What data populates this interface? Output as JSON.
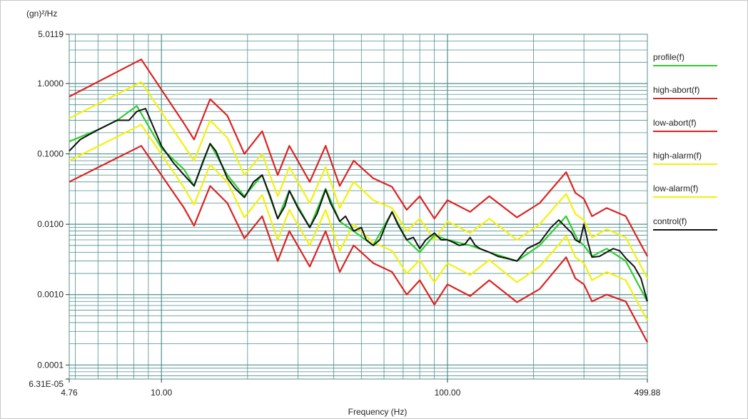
{
  "chart_data": {
    "type": "line",
    "title": "",
    "ylabel": "(gn)²/Hz",
    "xlabel": "Frequency (Hz)",
    "x_scale": "log",
    "y_scale": "log",
    "xlim": [
      4.76,
      499.88
    ],
    "ylim": [
      6.31e-05,
      5.0119
    ],
    "x_tick_labels": [
      {
        "value": 4.76,
        "label": "4.76"
      },
      {
        "value": 10,
        "label": "10.00"
      },
      {
        "value": 100,
        "label": "100.00"
      },
      {
        "value": 499.88,
        "label": "499.88"
      }
    ],
    "y_tick_labels": [
      {
        "value": 5.0119,
        "label": "5.0119"
      },
      {
        "value": 1.0,
        "label": "1.0000"
      },
      {
        "value": 0.1,
        "label": "0.1000"
      },
      {
        "value": 0.01,
        "label": "0.0100"
      },
      {
        "value": 0.001,
        "label": "0.0010"
      },
      {
        "value": 0.0001,
        "label": "0.0001"
      },
      {
        "value": 6.31e-05,
        "label": "6.31E-05"
      }
    ],
    "grid": true,
    "legend_position": "right",
    "series": [
      {
        "name": "profile(f)",
        "color": "#2ecc2e",
        "x": [
          4.76,
          6,
          7,
          8.2,
          10,
          12,
          13,
          14.8,
          17,
          19.5,
          22.5,
          25.5,
          28,
          33,
          37.5,
          42,
          47,
          55,
          64,
          72,
          80,
          90,
          100,
          120,
          140,
          175,
          210,
          260,
          285,
          300,
          320,
          360,
          420,
          499.88
        ],
        "y": [
          0.15,
          0.22,
          0.3,
          0.48,
          0.12,
          0.06,
          0.035,
          0.14,
          0.05,
          0.025,
          0.05,
          0.012,
          0.03,
          0.009,
          0.032,
          0.011,
          0.008,
          0.005,
          0.015,
          0.006,
          0.004,
          0.007,
          0.006,
          0.005,
          0.004,
          0.003,
          0.005,
          0.013,
          0.006,
          0.005,
          0.0035,
          0.0045,
          0.003,
          0.0008
        ]
      },
      {
        "name": "high-abort(f)",
        "color": "#dd2222",
        "x": [
          4.76,
          8.5,
          12,
          13,
          14.8,
          17,
          19.5,
          22.5,
          25.5,
          28,
          33,
          37.5,
          42,
          47,
          55,
          64,
          72,
          80,
          90,
          100,
          120,
          140,
          175,
          210,
          260,
          280,
          300,
          320,
          360,
          420,
          499.88
        ],
        "y": [
          0.65,
          2.2,
          0.27,
          0.16,
          0.6,
          0.35,
          0.1,
          0.21,
          0.05,
          0.13,
          0.04,
          0.13,
          0.035,
          0.08,
          0.045,
          0.034,
          0.016,
          0.025,
          0.012,
          0.022,
          0.015,
          0.025,
          0.0125,
          0.02,
          0.055,
          0.028,
          0.023,
          0.013,
          0.017,
          0.013,
          0.0035
        ]
      },
      {
        "name": "low-abort(f)",
        "color": "#dd2222",
        "x": [
          4.76,
          8.5,
          12,
          13,
          14.8,
          17,
          19.5,
          22.5,
          25.5,
          28,
          33,
          37.5,
          42,
          47,
          55,
          64,
          72,
          80,
          90,
          100,
          120,
          140,
          175,
          210,
          260,
          280,
          300,
          320,
          360,
          420,
          499.88
        ],
        "y": [
          0.04,
          0.13,
          0.017,
          0.0095,
          0.035,
          0.02,
          0.0063,
          0.013,
          0.003,
          0.008,
          0.0025,
          0.008,
          0.0021,
          0.005,
          0.0028,
          0.0021,
          0.001,
          0.0016,
          0.00072,
          0.0014,
          0.00095,
          0.0016,
          0.00078,
          0.0012,
          0.0034,
          0.0017,
          0.0014,
          0.0008,
          0.001,
          0.0008,
          0.00021
        ]
      },
      {
        "name": "high-alarm(f)",
        "color": "#f2f20a",
        "x": [
          4.76,
          8.5,
          12,
          13,
          14.8,
          17,
          19.5,
          22.5,
          25.5,
          28,
          33,
          37.5,
          42,
          47,
          55,
          64,
          72,
          80,
          90,
          100,
          120,
          140,
          175,
          210,
          260,
          280,
          300,
          320,
          360,
          420,
          499.88
        ],
        "y": [
          0.32,
          1.05,
          0.13,
          0.08,
          0.3,
          0.17,
          0.05,
          0.1,
          0.025,
          0.065,
          0.02,
          0.065,
          0.017,
          0.04,
          0.022,
          0.017,
          0.008,
          0.012,
          0.006,
          0.011,
          0.0075,
          0.012,
          0.006,
          0.01,
          0.027,
          0.014,
          0.0115,
          0.0065,
          0.0085,
          0.0065,
          0.0017
        ]
      },
      {
        "name": "low-alarm(f)",
        "color": "#f2f20a",
        "x": [
          4.76,
          8.5,
          12,
          13,
          14.8,
          17,
          19.5,
          22.5,
          25.5,
          28,
          33,
          37.5,
          42,
          47,
          55,
          64,
          72,
          80,
          90,
          100,
          120,
          140,
          175,
          210,
          260,
          280,
          300,
          320,
          360,
          420,
          499.88
        ],
        "y": [
          0.08,
          0.26,
          0.033,
          0.019,
          0.07,
          0.04,
          0.0125,
          0.026,
          0.006,
          0.016,
          0.005,
          0.016,
          0.0042,
          0.01,
          0.0055,
          0.0042,
          0.002,
          0.0031,
          0.0015,
          0.0028,
          0.0019,
          0.0031,
          0.0015,
          0.0025,
          0.0068,
          0.0034,
          0.0028,
          0.0016,
          0.0021,
          0.0016,
          0.00043
        ]
      },
      {
        "name": "control(f)",
        "color": "#111111",
        "x": [
          4.76,
          5.2,
          6,
          7,
          7.7,
          8.2,
          8.8,
          10,
          11,
          12,
          13,
          14,
          14.8,
          15.5,
          17,
          18,
          19.5,
          21,
          22.5,
          24,
          25.5,
          27,
          28,
          30,
          33,
          35,
          37.5,
          39,
          42,
          44,
          47,
          50,
          52,
          55,
          58,
          61,
          64,
          67,
          72,
          76,
          80,
          84,
          90,
          95,
          100,
          105,
          110,
          115,
          120,
          125,
          130,
          140,
          150,
          160,
          175,
          190,
          210,
          230,
          245,
          260,
          272,
          280,
          290,
          300,
          310,
          320,
          340,
          360,
          380,
          400,
          420,
          450,
          475,
          499.88
        ],
        "y": [
          0.11,
          0.16,
          0.22,
          0.3,
          0.3,
          0.4,
          0.44,
          0.13,
          0.075,
          0.05,
          0.035,
          0.08,
          0.14,
          0.11,
          0.045,
          0.033,
          0.024,
          0.04,
          0.05,
          0.025,
          0.012,
          0.018,
          0.03,
          0.017,
          0.009,
          0.014,
          0.031,
          0.02,
          0.011,
          0.013,
          0.008,
          0.009,
          0.006,
          0.005,
          0.006,
          0.01,
          0.015,
          0.01,
          0.006,
          0.0065,
          0.0045,
          0.006,
          0.0075,
          0.006,
          0.006,
          0.0055,
          0.005,
          0.0052,
          0.0065,
          0.005,
          0.0045,
          0.004,
          0.0035,
          0.0033,
          0.003,
          0.0045,
          0.0055,
          0.009,
          0.0115,
          0.009,
          0.0075,
          0.006,
          0.0055,
          0.01,
          0.0055,
          0.0034,
          0.0035,
          0.004,
          0.0045,
          0.0042,
          0.0033,
          0.0025,
          0.0017,
          0.0008
        ]
      }
    ]
  }
}
